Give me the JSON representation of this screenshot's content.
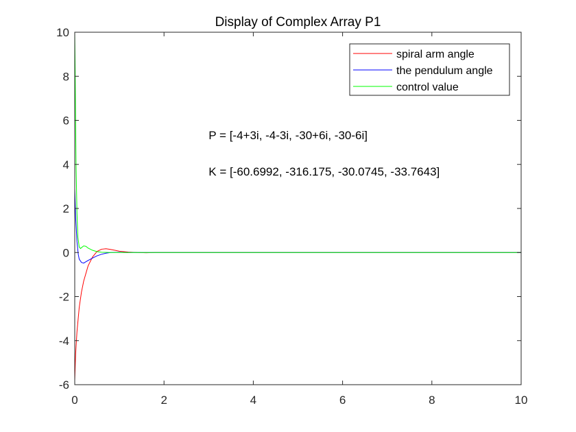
{
  "chart_data": {
    "type": "line",
    "title": "Display of Complex Array P1",
    "xlabel": "",
    "ylabel": "",
    "xlim": [
      0,
      10
    ],
    "ylim": [
      -6,
      10
    ],
    "x_ticks": [
      0,
      2,
      4,
      6,
      8,
      10
    ],
    "y_ticks": [
      -6,
      -4,
      -2,
      0,
      2,
      4,
      6,
      8,
      10
    ],
    "x_tick_labels": [
      "0",
      "2",
      "4",
      "6",
      "8",
      "10"
    ],
    "y_tick_labels": [
      "-6",
      "-4",
      "-2",
      "0",
      "2",
      "4",
      "6",
      "8",
      "10"
    ],
    "grid": false,
    "legend_position": "top-right",
    "series": [
      {
        "name": "spiral arm angle",
        "color": "#ff0000",
        "x": [
          0,
          0.02,
          0.05,
          0.1,
          0.15,
          0.2,
          0.3,
          0.4,
          0.5,
          0.6,
          0.7,
          0.8,
          0.9,
          1.0,
          1.2,
          1.4,
          1.6,
          1.8,
          2.0,
          3.0,
          4.0,
          6.0,
          8.0,
          10.0
        ],
        "y": [
          -5.8,
          -4.6,
          -3.6,
          -2.5,
          -1.8,
          -1.3,
          -0.6,
          -0.2,
          0.05,
          0.15,
          0.17,
          0.14,
          0.1,
          0.06,
          0.02,
          0.0,
          -0.01,
          0.0,
          0.0,
          0.0,
          0.0,
          0.0,
          0.0,
          0.0
        ]
      },
      {
        "name": "the pendulum angle",
        "color": "#0000ff",
        "x": [
          0,
          0.02,
          0.05,
          0.08,
          0.1,
          0.15,
          0.2,
          0.25,
          0.3,
          0.4,
          0.5,
          0.6,
          0.7,
          0.8,
          1.0,
          1.2,
          1.5,
          2.0,
          3.0,
          4.0,
          6.0,
          8.0,
          10.0
        ],
        "y": [
          2.9,
          1.6,
          0.5,
          -0.1,
          -0.3,
          -0.45,
          -0.48,
          -0.42,
          -0.36,
          -0.25,
          -0.15,
          -0.08,
          -0.03,
          0.0,
          0.01,
          0.0,
          0.0,
          0.0,
          0.0,
          0.0,
          0.0,
          0.0,
          0.0
        ]
      },
      {
        "name": "control value",
        "color": "#00ff00",
        "x": [
          0,
          0.01,
          0.02,
          0.03,
          0.05,
          0.07,
          0.1,
          0.13,
          0.15,
          0.2,
          0.25,
          0.3,
          0.4,
          0.5,
          0.6,
          0.8,
          1.0,
          1.5,
          2.0,
          4.0,
          6.0,
          8.0,
          10.0
        ],
        "y": [
          10,
          8.2,
          5.8,
          3.9,
          1.8,
          0.7,
          0.25,
          0.18,
          0.22,
          0.3,
          0.28,
          0.2,
          0.1,
          0.04,
          0.01,
          0.0,
          0.0,
          0.0,
          0.0,
          0.0,
          0.0,
          0.0,
          0.0
        ]
      }
    ],
    "annotations": [
      {
        "text": "P = [-4+3i, -4-3i, -30+6i, -30-6i]",
        "x": 3.0,
        "y": 5.15
      },
      {
        "text": "K = [-60.6992, -316.175, -30.0745, -33.7643]",
        "x": 3.0,
        "y": 3.5
      }
    ]
  }
}
